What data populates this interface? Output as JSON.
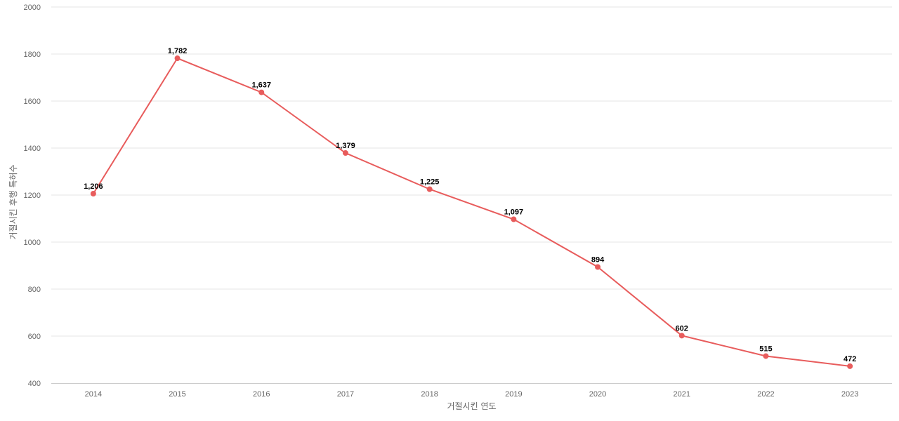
{
  "chart_data": {
    "type": "line",
    "title": "",
    "xlabel": "거절시킨 연도",
    "ylabel": "거절시킨 후행 특허수",
    "categories": [
      "2014",
      "2015",
      "2016",
      "2017",
      "2018",
      "2019",
      "2020",
      "2021",
      "2022",
      "2023"
    ],
    "series": [
      {
        "values": [
          1206,
          1782,
          1637,
          1379,
          1225,
          1097,
          894,
          602,
          515,
          472
        ],
        "color": "#e85c5c"
      }
    ],
    "data_labels": [
      "1,206",
      "1,782",
      "1,637",
      "1,379",
      "1,225",
      "1,097",
      "894",
      "602",
      "515",
      "472"
    ],
    "ylim": [
      400,
      2000
    ],
    "yticks": [
      400,
      600,
      800,
      1000,
      1200,
      1400,
      1600,
      1800,
      2000
    ],
    "grid": true,
    "legend": "none"
  }
}
